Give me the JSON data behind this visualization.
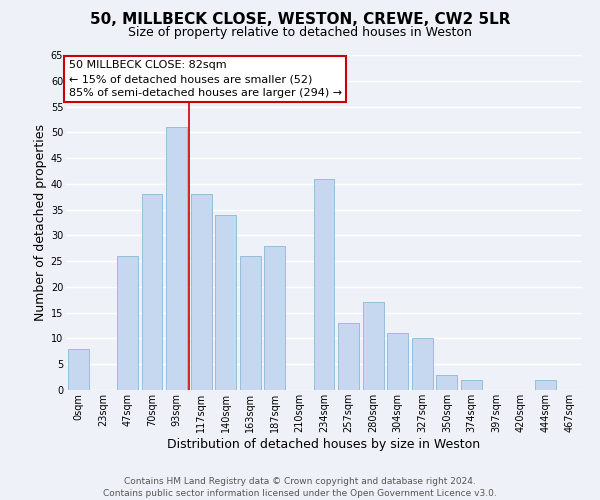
{
  "title": "50, MILLBECK CLOSE, WESTON, CREWE, CW2 5LR",
  "subtitle": "Size of property relative to detached houses in Weston",
  "xlabel": "Distribution of detached houses by size in Weston",
  "ylabel": "Number of detached properties",
  "footer_line1": "Contains HM Land Registry data © Crown copyright and database right 2024.",
  "footer_line2": "Contains public sector information licensed under the Open Government Licence v3.0.",
  "annotation_line1": "50 MILLBECK CLOSE: 82sqm",
  "annotation_line2": "← 15% of detached houses are smaller (52)",
  "annotation_line3": "85% of semi-detached houses are larger (294) →",
  "bar_labels": [
    "0sqm",
    "23sqm",
    "47sqm",
    "70sqm",
    "93sqm",
    "117sqm",
    "140sqm",
    "163sqm",
    "187sqm",
    "210sqm",
    "234sqm",
    "257sqm",
    "280sqm",
    "304sqm",
    "327sqm",
    "350sqm",
    "374sqm",
    "397sqm",
    "420sqm",
    "444sqm",
    "467sqm"
  ],
  "bar_values": [
    8,
    0,
    26,
    38,
    51,
    38,
    34,
    26,
    28,
    0,
    41,
    13,
    17,
    11,
    10,
    3,
    2,
    0,
    0,
    2,
    0
  ],
  "bar_color": "#c5d8f0",
  "bar_edge_color": "#7bafd4",
  "ylim": [
    0,
    65
  ],
  "yticks": [
    0,
    5,
    10,
    15,
    20,
    25,
    30,
    35,
    40,
    45,
    50,
    55,
    60,
    65
  ],
  "vline_x": 4.5,
  "vline_color": "#cc0000",
  "box_color": "#cc0000",
  "background_color": "#eef2f8",
  "grid_color": "#ffffff",
  "title_fontsize": 11,
  "subtitle_fontsize": 9,
  "axis_label_fontsize": 9,
  "tick_fontsize": 7,
  "annotation_fontsize": 8,
  "footer_fontsize": 6.5
}
